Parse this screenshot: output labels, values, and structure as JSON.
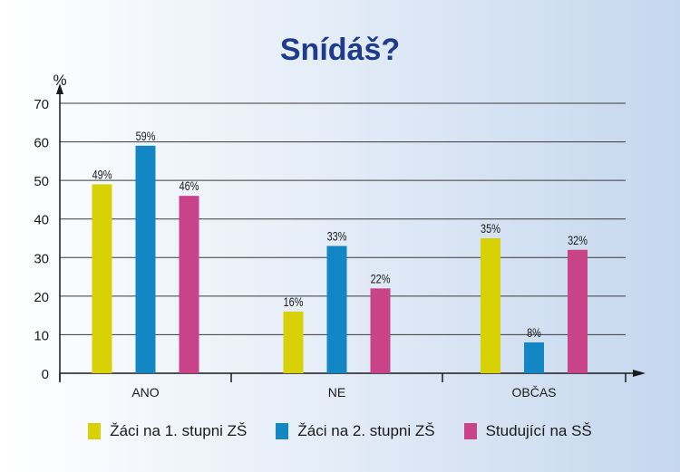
{
  "chart_data": {
    "type": "bar",
    "title": "Snídáš?",
    "ylabel": "%",
    "ylim": [
      0,
      70
    ],
    "yticks": [
      0,
      10,
      20,
      30,
      40,
      50,
      60,
      70
    ],
    "categories": [
      "ANO",
      "NE",
      "OBČAS"
    ],
    "series": [
      {
        "name": "Žáci na 1. stupni ZŠ",
        "color": "#d8d106",
        "values": [
          49,
          16,
          35
        ],
        "labels": [
          "49%",
          "16%",
          "35%"
        ]
      },
      {
        "name": "Žáci na 2. stupni ZŠ",
        "color": "#1287c4",
        "values": [
          59,
          33,
          8
        ],
        "labels": [
          "59%",
          "33%",
          "8%"
        ]
      },
      {
        "name": "Studující na SŠ",
        "color": "#c8438a",
        "values": [
          46,
          22,
          32
        ],
        "labels": [
          "46%",
          "22%",
          "32%"
        ]
      }
    ],
    "grid": true,
    "legend": "bottom"
  }
}
